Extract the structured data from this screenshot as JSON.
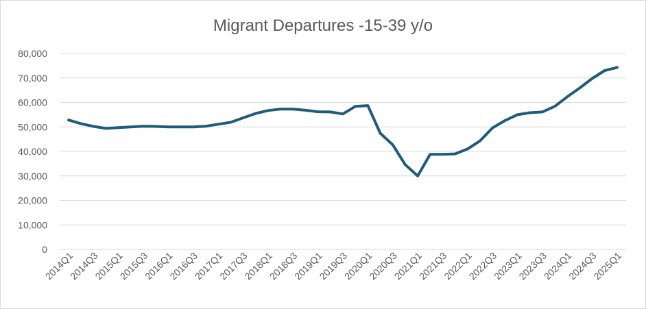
{
  "chart_data": {
    "type": "line",
    "title": "Migrant Departures -15-39 y/o",
    "xlabel": "",
    "ylabel": "",
    "ylim": [
      0,
      80000
    ],
    "yticks": [
      0,
      10000,
      20000,
      30000,
      40000,
      50000,
      60000,
      70000,
      80000
    ],
    "ytick_labels": [
      "0",
      "10,000",
      "20,000",
      "30,000",
      "40,000",
      "50,000",
      "60,000",
      "70,000",
      "80,000"
    ],
    "grid": true,
    "legend": "none",
    "categories": [
      "2014Q1",
      "2014Q2",
      "2014Q3",
      "2014Q4",
      "2015Q1",
      "2015Q2",
      "2015Q3",
      "2015Q4",
      "2016Q1",
      "2016Q2",
      "2016Q3",
      "2016Q4",
      "2017Q1",
      "2017Q2",
      "2017Q3",
      "2017Q4",
      "2018Q1",
      "2018Q2",
      "2018Q3",
      "2018Q4",
      "2019Q1",
      "2019Q2",
      "2019Q3",
      "2019Q4",
      "2020Q1",
      "2020Q2",
      "2020Q3",
      "2020Q4",
      "2021Q1",
      "2021Q2",
      "2021Q3",
      "2021Q4",
      "2022Q1",
      "2022Q2",
      "2022Q3",
      "2022Q4",
      "2023Q1",
      "2023Q2",
      "2023Q3",
      "2023Q4",
      "2024Q1",
      "2024Q2",
      "2024Q3",
      "2024Q4",
      "2025Q1"
    ],
    "tick_labels": [
      "2014Q1",
      "2014Q3",
      "2015Q1",
      "2015Q3",
      "2016Q1",
      "2016Q3",
      "2017Q1",
      "2017Q3",
      "2018Q1",
      "2018Q3",
      "2019Q1",
      "2019Q3",
      "2020Q1",
      "2020Q3",
      "2021Q1",
      "2021Q3",
      "2022Q1",
      "2022Q3",
      "2023Q1",
      "2023Q3",
      "2024Q1",
      "2024Q3",
      "2025Q1"
    ],
    "series": [
      {
        "name": "Migrant Departures -15-39 y/o",
        "color": "#1f5b7a",
        "values": [
          52800,
          51300,
          50200,
          49400,
          49700,
          50000,
          50300,
          50200,
          50000,
          50000,
          50000,
          50300,
          51100,
          51900,
          53700,
          55500,
          56700,
          57300,
          57300,
          56800,
          56200,
          56100,
          55300,
          58400,
          58700,
          47400,
          42700,
          34600,
          30000,
          38800,
          38800,
          39000,
          41000,
          44300,
          49600,
          52600,
          55000,
          55800,
          56100,
          58400,
          62300,
          65900,
          69800,
          73000,
          74300
        ]
      }
    ]
  }
}
